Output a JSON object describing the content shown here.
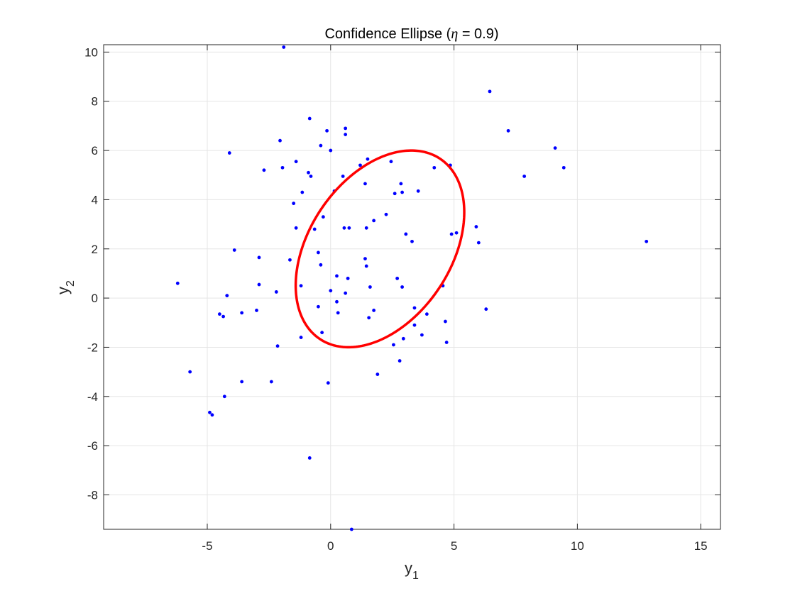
{
  "chart_data": {
    "type": "scatter",
    "title": "Confidence Ellipse (η = 0.9)",
    "title_parts": {
      "prefix": "Confidence Ellipse (",
      "symbol": "η",
      "suffix": " = 0.9)"
    },
    "xlabel": {
      "base": "y",
      "sub": "1"
    },
    "ylabel": {
      "base": "y",
      "sub": "2"
    },
    "xlim": [
      -9.2,
      15.8
    ],
    "ylim": [
      -9.4,
      10.3
    ],
    "xticks": [
      -5,
      0,
      5,
      10,
      15
    ],
    "yticks": [
      -8,
      -6,
      -4,
      -2,
      0,
      2,
      4,
      6,
      8,
      10
    ],
    "xtick_labels": [
      "-5",
      "0",
      "5",
      "10",
      "15"
    ],
    "ytick_labels": [
      "-8",
      "-6",
      "-4",
      "-2",
      "0",
      "2",
      "4",
      "6",
      "8",
      "10"
    ],
    "grid": true,
    "box": true,
    "colors": {
      "points": "#0000ff",
      "ellipse": "#ff0000",
      "grid": "#e5e5e5",
      "axes": "#262626"
    },
    "ellipse": {
      "center": [
        2.0,
        2.0
      ],
      "semi_major": 4.4,
      "semi_minor": 2.88,
      "angle_deg": 56.5
    },
    "points": [
      [
        -6.2,
        0.6
      ],
      [
        -5.7,
        -3.0
      ],
      [
        -4.9,
        -4.65
      ],
      [
        -4.8,
        -4.75
      ],
      [
        -4.5,
        -0.65
      ],
      [
        -4.35,
        -0.75
      ],
      [
        -4.3,
        -4.0
      ],
      [
        -4.2,
        0.1
      ],
      [
        -4.1,
        5.9
      ],
      [
        -3.9,
        1.95
      ],
      [
        -3.6,
        -3.4
      ],
      [
        -3.6,
        -0.6
      ],
      [
        -3.0,
        -0.5
      ],
      [
        -2.9,
        1.65
      ],
      [
        -2.9,
        0.55
      ],
      [
        -2.7,
        5.2
      ],
      [
        -2.4,
        -3.4
      ],
      [
        -2.2,
        0.25
      ],
      [
        -2.15,
        -1.95
      ],
      [
        -2.05,
        6.4
      ],
      [
        -1.95,
        5.3
      ],
      [
        -1.9,
        10.2
      ],
      [
        -1.65,
        1.55
      ],
      [
        -1.5,
        3.85
      ],
      [
        -1.4,
        5.55
      ],
      [
        -1.4,
        2.85
      ],
      [
        -1.2,
        0.5
      ],
      [
        -1.2,
        -1.6
      ],
      [
        -1.15,
        4.3
      ],
      [
        -0.9,
        5.1
      ],
      [
        -0.85,
        7.3
      ],
      [
        -0.85,
        -6.5
      ],
      [
        -0.8,
        4.95
      ],
      [
        -0.65,
        2.8
      ],
      [
        -0.5,
        1.85
      ],
      [
        -0.5,
        -0.35
      ],
      [
        -0.4,
        6.2
      ],
      [
        -0.4,
        1.35
      ],
      [
        -0.35,
        -1.4
      ],
      [
        -0.3,
        3.3
      ],
      [
        -0.15,
        6.8
      ],
      [
        -0.1,
        -3.45
      ],
      [
        0.0,
        6.0
      ],
      [
        0.0,
        0.3
      ],
      [
        0.15,
        4.35
      ],
      [
        0.25,
        0.9
      ],
      [
        0.25,
        -0.15
      ],
      [
        0.3,
        -0.6
      ],
      [
        0.5,
        4.95
      ],
      [
        0.55,
        2.85
      ],
      [
        0.6,
        6.9
      ],
      [
        0.6,
        6.65
      ],
      [
        0.6,
        0.2
      ],
      [
        0.7,
        0.8
      ],
      [
        0.75,
        2.85
      ],
      [
        0.85,
        -9.4
      ],
      [
        1.2,
        5.4
      ],
      [
        1.4,
        1.6
      ],
      [
        1.4,
        4.65
      ],
      [
        1.45,
        1.3
      ],
      [
        1.45,
        2.85
      ],
      [
        1.5,
        5.65
      ],
      [
        1.55,
        -0.8
      ],
      [
        1.6,
        0.45
      ],
      [
        1.75,
        3.15
      ],
      [
        1.75,
        -0.5
      ],
      [
        1.9,
        -3.1
      ],
      [
        2.25,
        3.4
      ],
      [
        2.45,
        5.55
      ],
      [
        2.55,
        -1.9
      ],
      [
        2.6,
        4.25
      ],
      [
        2.7,
        0.8
      ],
      [
        2.8,
        -2.55
      ],
      [
        2.85,
        4.65
      ],
      [
        2.9,
        4.3
      ],
      [
        2.9,
        0.45
      ],
      [
        2.95,
        -1.65
      ],
      [
        3.05,
        2.6
      ],
      [
        3.3,
        2.3
      ],
      [
        3.4,
        -0.4
      ],
      [
        3.4,
        -1.1
      ],
      [
        3.55,
        4.35
      ],
      [
        3.7,
        -1.5
      ],
      [
        3.9,
        -0.65
      ],
      [
        4.2,
        5.3
      ],
      [
        4.55,
        0.5
      ],
      [
        4.65,
        -0.95
      ],
      [
        4.7,
        -1.8
      ],
      [
        4.85,
        5.4
      ],
      [
        4.9,
        2.6
      ],
      [
        5.1,
        2.65
      ],
      [
        5.9,
        2.9
      ],
      [
        6.0,
        2.25
      ],
      [
        6.3,
        -0.45
      ],
      [
        6.45,
        8.4
      ],
      [
        7.2,
        6.8
      ],
      [
        7.85,
        4.95
      ],
      [
        9.1,
        6.1
      ],
      [
        9.45,
        5.3
      ],
      [
        12.8,
        2.3
      ]
    ]
  }
}
